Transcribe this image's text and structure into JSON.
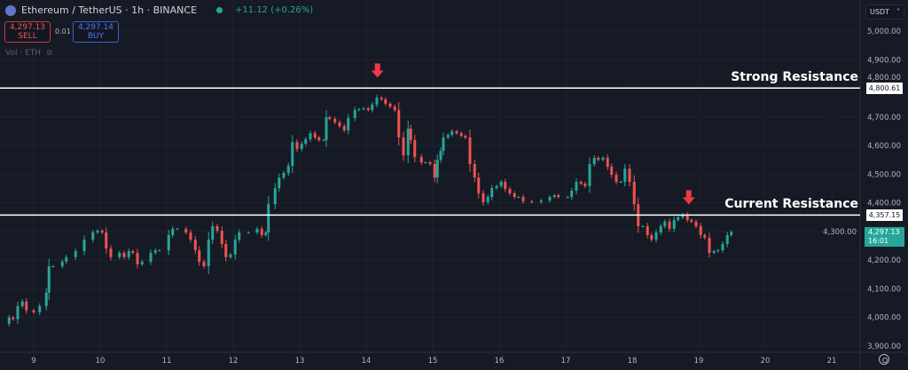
{
  "header": {
    "symbol": "Ethereum / TetherUS · 1h · BINANCE",
    "change": "+11.12 (+0.26%)",
    "sell_price": "4,297.13",
    "sell_label": "SELL",
    "spread": "0.01",
    "buy_price": "4,297.14",
    "buy_label": "BUY",
    "volume_label": "Vol · ETH"
  },
  "currency_selector": "USDT",
  "annotations": {
    "strong_resistance": {
      "label": "Strong Resistance",
      "price": 4800.61,
      "price_label": "4,800.61"
    },
    "current_resistance": {
      "label": "Current Resistance",
      "price": 4357.15,
      "price_label": "4,357.15"
    },
    "arrows": [
      {
        "day": 14.17,
        "price": 4800
      },
      {
        "day": 18.85,
        "price": 4357
      }
    ]
  },
  "current_price": {
    "price": 4297.13,
    "label": "4,297.13",
    "countdown": "16:01"
  },
  "colors": {
    "up": "#26a69a",
    "down": "#ef5350",
    "background": "#161a25",
    "grid": "#1f2330",
    "arrow": "#f23645"
  },
  "chart_data": {
    "type": "candlestick",
    "title": "",
    "grid": true,
    "ylim": [
      3880,
      5060
    ],
    "xlim": [
      8.5,
      21.45
    ],
    "y_ticks": [
      "5,000.00",
      "4,900.00",
      "4,800.00",
      "4,700.00",
      "4,600.00",
      "4,500.00",
      "4,400.00",
      "4,300.00",
      "4,200.00",
      "4,100.00",
      "4,000.00",
      "3,900.00"
    ],
    "y_tick_values": [
      5000,
      4900,
      4800,
      4700,
      4600,
      4500,
      4400,
      4300,
      4200,
      4100,
      4000,
      3900
    ],
    "x_ticks": [
      "9",
      "10",
      "11",
      "12",
      "13",
      "14",
      "15",
      "16",
      "17",
      "18",
      "19",
      "20",
      "21"
    ],
    "x_tick_values": [
      9,
      10,
      11,
      12,
      13,
      14,
      15,
      16,
      17,
      18,
      19,
      20,
      21
    ],
    "closes": [
      [
        8.56,
        3977
      ],
      [
        8.63,
        3999
      ],
      [
        8.69,
        3993
      ],
      [
        8.76,
        4039
      ],
      [
        8.83,
        4055
      ],
      [
        8.89,
        4024
      ],
      [
        9.0,
        4017
      ],
      [
        9.09,
        4039
      ],
      [
        9.19,
        4086
      ],
      [
        9.23,
        4178
      ],
      [
        9.29,
        4178
      ],
      [
        9.43,
        4194
      ],
      [
        9.49,
        4210
      ],
      [
        9.63,
        4231
      ],
      [
        9.76,
        4271
      ],
      [
        9.89,
        4296
      ],
      [
        9.96,
        4302
      ],
      [
        10.03,
        4296
      ],
      [
        10.09,
        4240
      ],
      [
        10.16,
        4210
      ],
      [
        10.29,
        4225
      ],
      [
        10.36,
        4210
      ],
      [
        10.43,
        4231
      ],
      [
        10.49,
        4225
      ],
      [
        10.56,
        4185
      ],
      [
        10.63,
        4194
      ],
      [
        10.76,
        4225
      ],
      [
        10.83,
        4234
      ],
      [
        10.89,
        4234
      ],
      [
        11.03,
        4287
      ],
      [
        11.09,
        4309
      ],
      [
        11.16,
        4309
      ],
      [
        11.29,
        4296
      ],
      [
        11.36,
        4271
      ],
      [
        11.43,
        4234
      ],
      [
        11.49,
        4194
      ],
      [
        11.56,
        4178
      ],
      [
        11.63,
        4271
      ],
      [
        11.69,
        4318
      ],
      [
        11.76,
        4302
      ],
      [
        11.83,
        4256
      ],
      [
        11.89,
        4210
      ],
      [
        11.96,
        4219
      ],
      [
        12.03,
        4271
      ],
      [
        12.09,
        4296
      ],
      [
        12.23,
        4296
      ],
      [
        12.36,
        4309
      ],
      [
        12.43,
        4287
      ],
      [
        12.49,
        4296
      ],
      [
        12.53,
        4395
      ],
      [
        12.63,
        4451
      ],
      [
        12.69,
        4488
      ],
      [
        12.76,
        4504
      ],
      [
        12.83,
        4529
      ],
      [
        12.89,
        4612
      ],
      [
        12.96,
        4588
      ],
      [
        13.03,
        4606
      ],
      [
        13.09,
        4622
      ],
      [
        13.16,
        4643
      ],
      [
        13.23,
        4628
      ],
      [
        13.29,
        4619
      ],
      [
        13.36,
        4619
      ],
      [
        13.4,
        4699
      ],
      [
        13.45,
        4693
      ],
      [
        13.53,
        4681
      ],
      [
        13.6,
        4668
      ],
      [
        13.67,
        4653
      ],
      [
        13.73,
        4696
      ],
      [
        13.83,
        4724
      ],
      [
        13.89,
        4727
      ],
      [
        13.96,
        4730
      ],
      [
        14.03,
        4724
      ],
      [
        14.09,
        4743
      ],
      [
        14.16,
        4767
      ],
      [
        14.23,
        4761
      ],
      [
        14.29,
        4746
      ],
      [
        14.36,
        4736
      ],
      [
        14.43,
        4724
      ],
      [
        14.49,
        4628
      ],
      [
        14.56,
        4566
      ],
      [
        14.63,
        4659
      ],
      [
        14.67,
        4619
      ],
      [
        14.73,
        4560
      ],
      [
        14.83,
        4541
      ],
      [
        14.89,
        4541
      ],
      [
        14.96,
        4535
      ],
      [
        15.03,
        4488
      ],
      [
        15.07,
        4550
      ],
      [
        15.12,
        4581
      ],
      [
        15.16,
        4628
      ],
      [
        15.23,
        4637
      ],
      [
        15.29,
        4650
      ],
      [
        15.36,
        4643
      ],
      [
        15.43,
        4634
      ],
      [
        15.49,
        4628
      ],
      [
        15.56,
        4535
      ],
      [
        15.63,
        4488
      ],
      [
        15.69,
        4433
      ],
      [
        15.76,
        4402
      ],
      [
        15.83,
        4420
      ],
      [
        15.89,
        4451
      ],
      [
        15.96,
        4458
      ],
      [
        16.03,
        4473
      ],
      [
        16.09,
        4448
      ],
      [
        16.16,
        4433
      ],
      [
        16.23,
        4420
      ],
      [
        16.29,
        4420
      ],
      [
        16.36,
        4405
      ],
      [
        16.49,
        4402
      ],
      [
        16.63,
        4408
      ],
      [
        16.76,
        4420
      ],
      [
        16.83,
        4426
      ],
      [
        16.89,
        4420
      ],
      [
        17.03,
        4420
      ],
      [
        17.09,
        4442
      ],
      [
        17.16,
        4473
      ],
      [
        17.23,
        4467
      ],
      [
        17.29,
        4458
      ],
      [
        17.36,
        4535
      ],
      [
        17.43,
        4557
      ],
      [
        17.49,
        4550
      ],
      [
        17.56,
        4557
      ],
      [
        17.63,
        4526
      ],
      [
        17.69,
        4498
      ],
      [
        17.76,
        4473
      ],
      [
        17.83,
        4473
      ],
      [
        17.89,
        4519
      ],
      [
        17.96,
        4473
      ],
      [
        18.03,
        4395
      ],
      [
        18.09,
        4318
      ],
      [
        18.16,
        4318
      ],
      [
        18.23,
        4287
      ],
      [
        18.29,
        4271
      ],
      [
        18.36,
        4296
      ],
      [
        18.43,
        4318
      ],
      [
        18.49,
        4334
      ],
      [
        18.56,
        4309
      ],
      [
        18.63,
        4340
      ],
      [
        18.69,
        4349
      ],
      [
        18.76,
        4358
      ],
      [
        18.83,
        4340
      ],
      [
        18.89,
        4334
      ],
      [
        18.96,
        4318
      ],
      [
        19.03,
        4287
      ],
      [
        19.09,
        4278
      ],
      [
        19.16,
        4225
      ],
      [
        19.23,
        4231
      ],
      [
        19.29,
        4234
      ],
      [
        19.36,
        4256
      ],
      [
        19.43,
        4287
      ],
      [
        19.49,
        4297.13
      ]
    ]
  }
}
